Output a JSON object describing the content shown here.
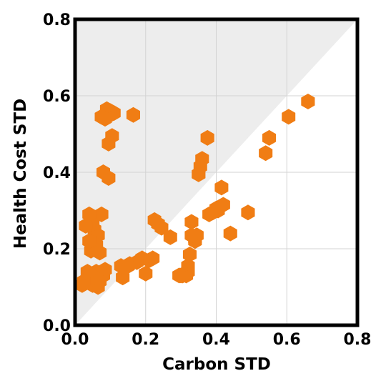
{
  "chart_data": {
    "type": "scatter",
    "marker": "hexagon",
    "xlabel": "Carbon STD",
    "ylabel": "Health Cost STD",
    "xlim": [
      0.0,
      0.8
    ],
    "ylim": [
      0.0,
      0.8
    ],
    "xticks": [
      "0.0",
      "0.2",
      "0.4",
      "0.6",
      "0.8"
    ],
    "yticks": [
      "0.0",
      "0.2",
      "0.4",
      "0.6",
      "0.8"
    ],
    "grid": true,
    "shaded_region": "above y = x diagonal",
    "colors": {
      "points": "#f07d14",
      "shade": "#ededed",
      "grid": "#d3d3d3",
      "frame": "#000000"
    },
    "series": [
      {
        "x": [
          0.66,
          0.605,
          0.55,
          0.54,
          0.49,
          0.44,
          0.42,
          0.415,
          0.405,
          0.4,
          0.39,
          0.38,
          0.375,
          0.36,
          0.355,
          0.35,
          0.35,
          0.345,
          0.34,
          0.34,
          0.33,
          0.33,
          0.325,
          0.32,
          0.32,
          0.315,
          0.31,
          0.305,
          0.3,
          0.295,
          0.27,
          0.245,
          0.235,
          0.225,
          0.22,
          0.21,
          0.2,
          0.19,
          0.175,
          0.165,
          0.155,
          0.15,
          0.135,
          0.13,
          0.11,
          0.105,
          0.1,
          0.095,
          0.095,
          0.09,
          0.09,
          0.085,
          0.085,
          0.08,
          0.08,
          0.075,
          0.075,
          0.07,
          0.07,
          0.065,
          0.065,
          0.06,
          0.06,
          0.055,
          0.055,
          0.05,
          0.05,
          0.045,
          0.045,
          0.04,
          0.04,
          0.035,
          0.03,
          0.025,
          0.02
        ],
        "y": [
          0.585,
          0.545,
          0.49,
          0.45,
          0.295,
          0.24,
          0.315,
          0.36,
          0.3,
          0.305,
          0.295,
          0.29,
          0.49,
          0.435,
          0.415,
          0.395,
          0.395,
          0.235,
          0.225,
          0.22,
          0.235,
          0.27,
          0.185,
          0.155,
          0.14,
          0.13,
          0.135,
          0.13,
          0.13,
          0.13,
          0.23,
          0.255,
          0.265,
          0.275,
          0.175,
          0.17,
          0.135,
          0.175,
          0.165,
          0.55,
          0.16,
          0.155,
          0.125,
          0.155,
          0.555,
          0.495,
          0.56,
          0.385,
          0.475,
          0.565,
          0.545,
          0.54,
          0.145,
          0.4,
          0.13,
          0.545,
          0.29,
          0.19,
          0.115,
          0.235,
          0.1,
          0.21,
          0.14,
          0.25,
          0.125,
          0.105,
          0.265,
          0.195,
          0.12,
          0.29,
          0.22,
          0.14,
          0.26,
          0.115,
          0.105
        ]
      }
    ]
  }
}
